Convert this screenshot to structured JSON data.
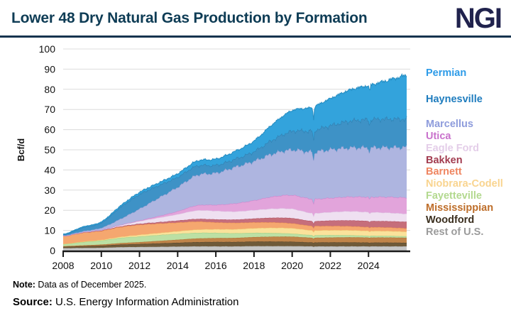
{
  "header": {
    "title": "Lower 48 Dry Natural Gas Production by Formation",
    "logo": "NGI"
  },
  "footer": {
    "note_label": "Note:",
    "note_text": " Data as of December 2025.",
    "source_label": "Source:",
    "source_text": " U.S. Energy Information Administration"
  },
  "chart_data": {
    "type": "area",
    "stacked": true,
    "title": "Lower 48 Dry Natural Gas Production by Formation",
    "xlabel": "",
    "ylabel": "Bcf/d",
    "ylim": [
      0,
      100
    ],
    "yticks": [
      0,
      10,
      20,
      30,
      40,
      50,
      60,
      70,
      80,
      90,
      100
    ],
    "xticks": [
      2008,
      2010,
      2012,
      2014,
      2016,
      2018,
      2020,
      2022,
      2024
    ],
    "grid": "horizontal",
    "legend_position": "right",
    "x_unit": "year",
    "x": [
      2008,
      2009,
      2010,
      2011,
      2012,
      2013,
      2014,
      2015,
      2016,
      2017,
      2018,
      2019,
      2020,
      2021,
      2022,
      2023,
      2024,
      2025,
      2026
    ],
    "units": "Bcf/d",
    "series": [
      {
        "name": "Permian",
        "color": "#33A3DC",
        "edge": "#1E87BE",
        "legend_color": "#2D9BE8",
        "values": [
          0.3,
          0.4,
          0.5,
          0.7,
          1.0,
          1.3,
          1.7,
          2.4,
          3.0,
          3.8,
          5.2,
          7.8,
          10.2,
          11.5,
          13.3,
          15.3,
          16.8,
          19.0,
          21.5
        ]
      },
      {
        "name": "Haynesville",
        "color": "#3E92C6",
        "edge": "#2B78A8",
        "legend_color": "#1E7CBE",
        "values": [
          0.4,
          1.8,
          2.5,
          5.8,
          7.2,
          6.2,
          5.0,
          4.6,
          3.9,
          4.0,
          4.8,
          7.0,
          9.3,
          10.5,
          12.0,
          13.3,
          14.0,
          14.2,
          14.0
        ]
      },
      {
        "name": "Marcellus",
        "color": "#AEB5E0",
        "edge": "#8F99CF",
        "legend_color": "#8E9CDC",
        "values": [
          0.2,
          0.5,
          1.0,
          3.0,
          5.8,
          9.0,
          12.0,
          15.0,
          15.8,
          18.0,
          19.5,
          21.3,
          22.5,
          23.3,
          24.0,
          24.3,
          24.5,
          24.6,
          25.0
        ]
      },
      {
        "name": "Utica",
        "color": "#E2A4DB",
        "edge": "#C87BC8",
        "legend_color": "#C972CC",
        "values": [
          0.0,
          0.0,
          0.1,
          0.1,
          0.3,
          0.8,
          1.5,
          2.5,
          3.0,
          4.0,
          4.8,
          6.0,
          6.8,
          7.0,
          7.0,
          7.2,
          7.5,
          7.8,
          8.0
        ]
      },
      {
        "name": "Eagle Ford",
        "color": "#EFE0F1",
        "edge": "#DCC3E2",
        "legend_color": "#E4CEE9",
        "values": [
          0.0,
          0.1,
          0.2,
          0.6,
          1.3,
          2.2,
          3.1,
          4.2,
          4.2,
          4.0,
          4.2,
          4.5,
          4.6,
          4.0,
          4.2,
          4.5,
          4.4,
          4.2,
          4.0
        ]
      },
      {
        "name": "Bakken",
        "color": "#C66E7B",
        "edge": "#AA4C5E",
        "legend_color": "#A23C50",
        "values": [
          0.1,
          0.1,
          0.2,
          0.3,
          0.5,
          0.7,
          1.0,
          1.3,
          1.5,
          1.6,
          1.9,
          2.3,
          2.6,
          2.4,
          2.7,
          2.9,
          3.0,
          3.1,
          3.2
        ]
      },
      {
        "name": "Barnett",
        "color": "#F5A76F",
        "edge": "#E88B4A",
        "legend_color": "#EF8560",
        "values": [
          3.8,
          4.4,
          4.5,
          4.9,
          5.0,
          4.7,
          4.3,
          4.0,
          3.4,
          3.2,
          2.9,
          2.7,
          2.4,
          2.2,
          2.1,
          2.0,
          1.9,
          1.8,
          1.7
        ]
      },
      {
        "name": "Niobrara-Codell",
        "color": "#FAE29B",
        "edge": "#EECB6F",
        "legend_color": "#F9D48F",
        "values": [
          0.1,
          0.2,
          0.3,
          0.5,
          0.8,
          1.0,
          1.3,
          1.6,
          1.8,
          2.0,
          2.3,
          2.6,
          2.7,
          2.4,
          2.4,
          2.5,
          2.4,
          2.4,
          2.3
        ]
      },
      {
        "name": "Fayetteville",
        "color": "#BCE0A4",
        "edge": "#9ACB7E",
        "legend_color": "#B3D98F",
        "values": [
          1.0,
          1.6,
          2.0,
          2.6,
          2.8,
          2.9,
          2.9,
          2.8,
          2.6,
          2.3,
          2.1,
          1.8,
          1.5,
          1.3,
          1.2,
          1.0,
          0.9,
          0.8,
          0.7
        ]
      },
      {
        "name": "Mississippian",
        "color": "#C08449",
        "edge": "#A76B30",
        "legend_color": "#BE6E2A",
        "values": [
          0.3,
          0.4,
          0.5,
          0.7,
          0.9,
          1.2,
          1.5,
          1.8,
          1.9,
          2.0,
          2.2,
          2.4,
          2.5,
          2.3,
          2.4,
          2.5,
          2.5,
          2.5,
          2.5
        ]
      },
      {
        "name": "Woodford",
        "color": "#6F5A39",
        "edge": "#57452A",
        "legend_color": "#3B2F1F",
        "values": [
          0.7,
          0.9,
          1.1,
          1.3,
          1.5,
          1.7,
          1.9,
          2.1,
          2.2,
          2.2,
          2.3,
          2.3,
          2.2,
          2.0,
          2.0,
          2.0,
          1.9,
          1.9,
          1.8
        ]
      },
      {
        "name": "Rest of U.S.",
        "color": "#C6C6C6",
        "edge": "#ADADAD",
        "legend_color": "#9B9B9B",
        "values": [
          1.2,
          1.3,
          1.4,
          1.7,
          1.8,
          1.9,
          2.0,
          2.1,
          2.1,
          2.1,
          2.2,
          2.2,
          2.2,
          2.1,
          2.1,
          2.1,
          2.1,
          2.1,
          2.1
        ]
      }
    ]
  }
}
